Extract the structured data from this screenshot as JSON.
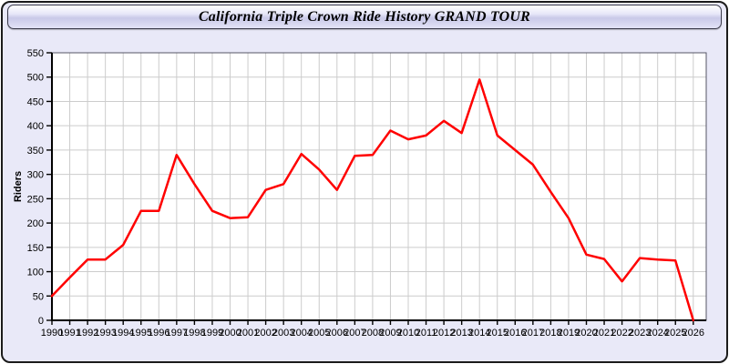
{
  "page": {
    "title": "California Triple Crown Ride History GRAND TOUR",
    "background_color": "#e9e9f8"
  },
  "chart_data": {
    "type": "line",
    "title": "California Triple Crown Ride History GRAND TOUR",
    "xlabel": "",
    "ylabel": "Riders",
    "categories": [
      "1990",
      "1991",
      "1992",
      "1993",
      "1994",
      "1995",
      "1996",
      "1997",
      "1998",
      "1999",
      "2000",
      "2001",
      "2002",
      "2003",
      "2004",
      "2005",
      "2006",
      "2007",
      "2008",
      "2009",
      "2010",
      "2011",
      "2012",
      "2013",
      "2014",
      "2015",
      "2016",
      "2017",
      "2018",
      "2019",
      "2020",
      "2021",
      "2022",
      "2023",
      "2024",
      "2025",
      "2026"
    ],
    "series": [
      {
        "name": "Riders",
        "color": "#ff0000",
        "values": [
          50,
          88,
          125,
          125,
          155,
          225,
          225,
          340,
          280,
          225,
          210,
          212,
          268,
          280,
          342,
          310,
          268,
          338,
          340,
          390,
          372,
          380,
          410,
          385,
          495,
          380,
          350,
          320,
          264,
          210,
          135,
          126,
          80,
          128,
          125,
          123,
          0
        ]
      }
    ],
    "ylim": [
      0,
      550
    ],
    "ytick_step": 50,
    "yticks": [
      "0",
      "50",
      "100",
      "150",
      "200",
      "250",
      "300",
      "350",
      "400",
      "450",
      "500",
      "550"
    ],
    "grid": true,
    "legend_position": "none",
    "plot_background": "#ffffff",
    "grid_color": "#cccccc",
    "axis_color": "#000000",
    "frame_color": "#555566",
    "tick_label_color": "#000000"
  }
}
